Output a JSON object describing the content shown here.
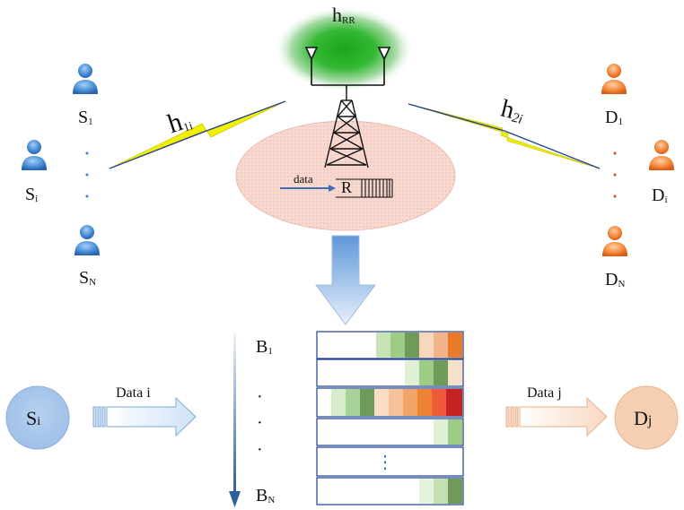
{
  "relay": {
    "h_rr": {
      "main": "h",
      "sub": "RR"
    },
    "h_1i": {
      "main": "h",
      "sub": "1i"
    },
    "h_2i": {
      "main": "h",
      "sub": "2i"
    },
    "data_label": "data",
    "relay_label": "R"
  },
  "sources": [
    {
      "main": "S",
      "sub": "1"
    },
    {
      "main": "S",
      "sub": "i"
    },
    {
      "main": "S",
      "sub": "N"
    }
  ],
  "destinations": [
    {
      "main": "D",
      "sub": "1"
    },
    {
      "main": "D",
      "sub": "i"
    },
    {
      "main": "D",
      "sub": "N"
    }
  ],
  "buffers": {
    "top": {
      "main": "B",
      "sub": "1"
    },
    "bottom": {
      "main": "B",
      "sub": "N"
    },
    "dots": [
      "·",
      "·",
      "·"
    ],
    "inner_dots": "⋮"
  },
  "flow": {
    "source_node": {
      "main": "S",
      "sub": "i"
    },
    "dest_node": {
      "main": "D",
      "sub": "j"
    },
    "data_in": "Data i",
    "data_out": "Data j"
  },
  "colors": {
    "source_blue": "#3a7fd0",
    "dest_orange": "#f07a2a",
    "antenna_green": "#1faa1f",
    "link_yellow": "#f2f000",
    "link_blue": "#1f3f8f",
    "relay_pink": "#f6d6cd"
  }
}
